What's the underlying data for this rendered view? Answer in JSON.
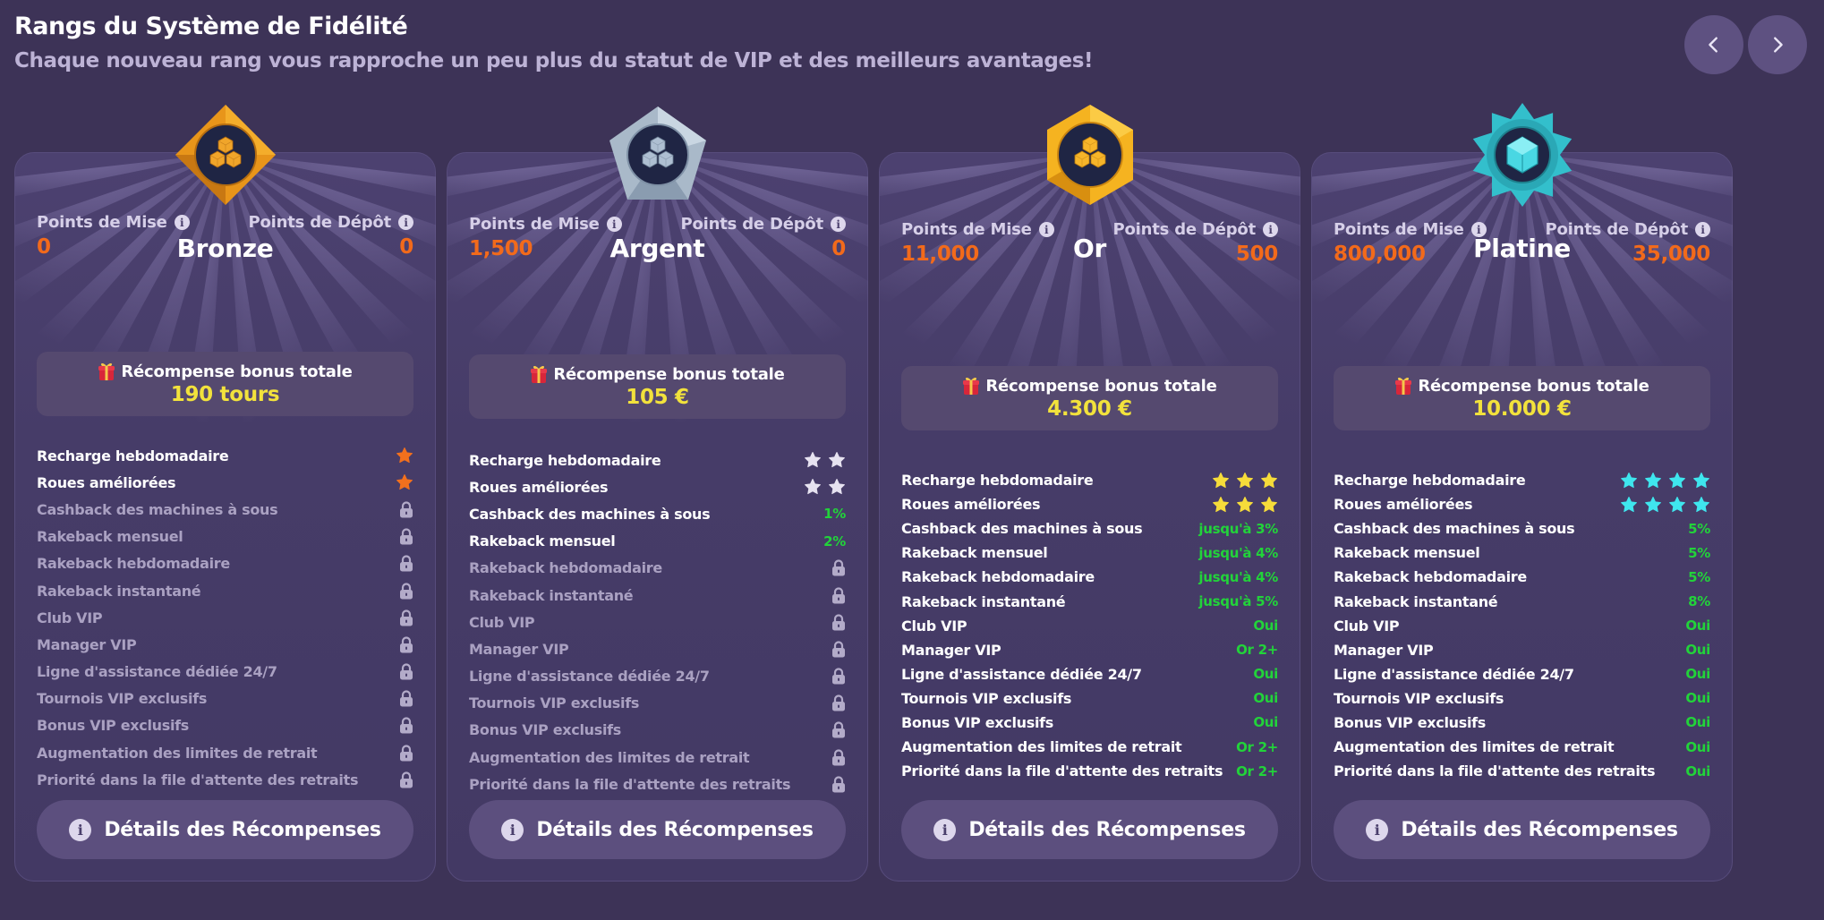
{
  "header": {
    "title": "Rangs du Système de Fidélité",
    "subtitle": "Chaque nouveau rang vous rapproche un peu plus du statut de VIP et des meilleurs avantages!",
    "prev_icon": "chevron-left-icon",
    "next_icon": "chevron-right-icon"
  },
  "labels": {
    "wager_points": "Points de Mise",
    "deposit_points": "Points de Dépôt",
    "total_bonus": "Récompense bonus totale",
    "details_button": "Détails des Récompenses"
  },
  "colors": {
    "background": "#3d3357",
    "card": "#463c68",
    "points_orange": "#f26a1b",
    "reward_yellow": "#f2e23c",
    "value_green": "#22d33a",
    "bronze": "#e89a1a",
    "silver": "#aebfd0",
    "gold": "#f5b320",
    "platinum": "#37c6d3"
  },
  "perk_names": [
    "Recharge hebdomadaire",
    "Roues améliorées",
    "Cashback des machines à sous",
    "Rakeback mensuel",
    "Rakeback hebdomadaire",
    "Rakeback instantané",
    "Club VIP",
    "Manager VIP",
    "Ligne d'assistance dédiée 24/7",
    "Tournois VIP exclusifs",
    "Bonus VIP exclusifs",
    "Augmentation des limites de retrait",
    "Priorité dans la file d'attente des retraits"
  ],
  "ranks": [
    {
      "name": "Bronze",
      "badge": "bronze-diamond-badge",
      "wager_points": "0",
      "deposit_points": "0",
      "total_bonus": "190 tours",
      "star_color": "#f2701d",
      "perks": [
        {
          "type": "stars",
          "count": 1
        },
        {
          "type": "stars",
          "count": 1
        },
        {
          "type": "locked"
        },
        {
          "type": "locked"
        },
        {
          "type": "locked"
        },
        {
          "type": "locked"
        },
        {
          "type": "locked"
        },
        {
          "type": "locked"
        },
        {
          "type": "locked"
        },
        {
          "type": "locked"
        },
        {
          "type": "locked"
        },
        {
          "type": "locked"
        },
        {
          "type": "locked"
        }
      ]
    },
    {
      "name": "Argent",
      "badge": "silver-pentagon-badge",
      "wager_points": "1,500",
      "deposit_points": "0",
      "total_bonus": "105 €",
      "star_color": "#e6e2f0",
      "perks": [
        {
          "type": "stars",
          "count": 2
        },
        {
          "type": "stars",
          "count": 2
        },
        {
          "type": "value",
          "value": "1%"
        },
        {
          "type": "value",
          "value": "2%"
        },
        {
          "type": "locked"
        },
        {
          "type": "locked"
        },
        {
          "type": "locked"
        },
        {
          "type": "locked"
        },
        {
          "type": "locked"
        },
        {
          "type": "locked"
        },
        {
          "type": "locked"
        },
        {
          "type": "locked"
        },
        {
          "type": "locked"
        }
      ]
    },
    {
      "name": "Or",
      "badge": "gold-hexagon-badge",
      "wager_points": "11,000",
      "deposit_points": "500",
      "total_bonus": "4.300 €",
      "star_color": "#f6dc3a",
      "perks": [
        {
          "type": "stars",
          "count": 3
        },
        {
          "type": "stars",
          "count": 3
        },
        {
          "type": "value",
          "value": "jusqu'à 3%"
        },
        {
          "type": "value",
          "value": "jusqu'à 4%"
        },
        {
          "type": "value",
          "value": "jusqu'à 4%"
        },
        {
          "type": "value",
          "value": "jusqu'à 5%"
        },
        {
          "type": "value",
          "value": "Oui"
        },
        {
          "type": "value",
          "value": "Or 2+"
        },
        {
          "type": "value",
          "value": "Oui"
        },
        {
          "type": "value",
          "value": "Oui"
        },
        {
          "type": "value",
          "value": "Oui"
        },
        {
          "type": "value",
          "value": "Or 2+"
        },
        {
          "type": "value",
          "value": "Or 2+"
        }
      ]
    },
    {
      "name": "Platine",
      "badge": "platinum-star-badge",
      "wager_points": "800,000",
      "deposit_points": "35,000",
      "total_bonus": "10.000 €",
      "star_color": "#3fe6ee",
      "perks": [
        {
          "type": "stars",
          "count": 4
        },
        {
          "type": "stars",
          "count": 4
        },
        {
          "type": "value",
          "value": "5%"
        },
        {
          "type": "value",
          "value": "5%"
        },
        {
          "type": "value",
          "value": "5%"
        },
        {
          "type": "value",
          "value": "8%"
        },
        {
          "type": "value",
          "value": "Oui"
        },
        {
          "type": "value",
          "value": "Oui"
        },
        {
          "type": "value",
          "value": "Oui"
        },
        {
          "type": "value",
          "value": "Oui"
        },
        {
          "type": "value",
          "value": "Oui"
        },
        {
          "type": "value",
          "value": "Oui"
        },
        {
          "type": "value",
          "value": "Oui"
        }
      ]
    }
  ]
}
